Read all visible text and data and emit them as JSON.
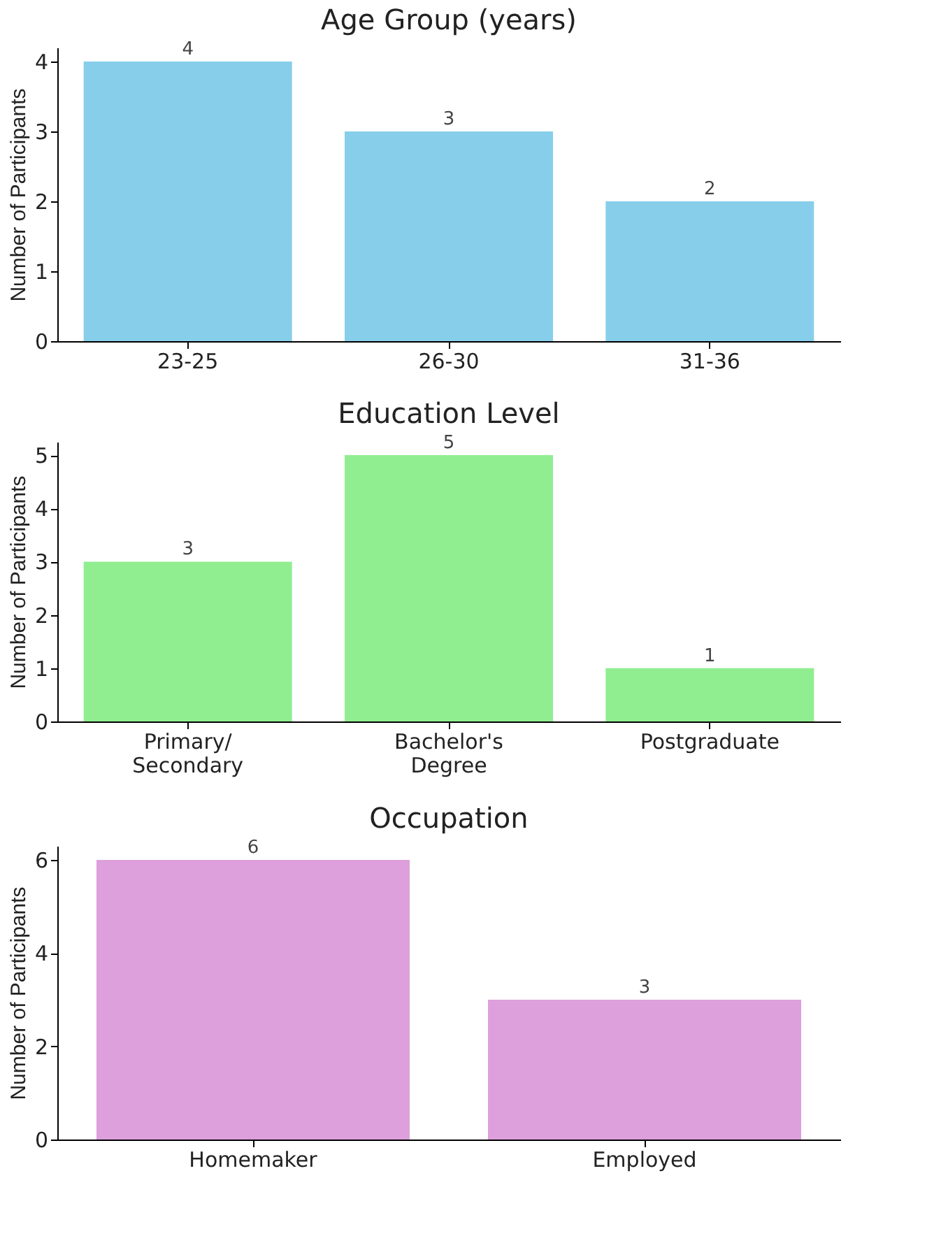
{
  "chart_data": [
    {
      "type": "bar",
      "title": "Age Group (years)",
      "ylabel": "Number of Participants",
      "categories": [
        "23-25",
        "26-30",
        "31-36"
      ],
      "values": [
        4,
        3,
        2
      ],
      "color": "#87ceeb",
      "ylim": [
        0,
        4.2
      ],
      "yticks": [
        0,
        1,
        2,
        3,
        4
      ],
      "data_labels": true,
      "grid": false
    },
    {
      "type": "bar",
      "title": "Education Level",
      "ylabel": "Number of Participants",
      "categories": [
        "Primary/\nSecondary",
        "Bachelor's\nDegree",
        "Postgraduate"
      ],
      "values": [
        3,
        5,
        1
      ],
      "color": "#90ee90",
      "ylim": [
        0,
        5.25
      ],
      "yticks": [
        0,
        1,
        2,
        3,
        4,
        5
      ],
      "data_labels": true,
      "grid": false
    },
    {
      "type": "bar",
      "title": "Occupation",
      "ylabel": "Number of Participants",
      "categories": [
        "Homemaker",
        "Employed"
      ],
      "values": [
        6,
        3
      ],
      "color": "#dda0dd",
      "ylim": [
        0,
        6.3
      ],
      "yticks": [
        0,
        2,
        4,
        6
      ],
      "data_labels": true,
      "grid": false
    }
  ]
}
